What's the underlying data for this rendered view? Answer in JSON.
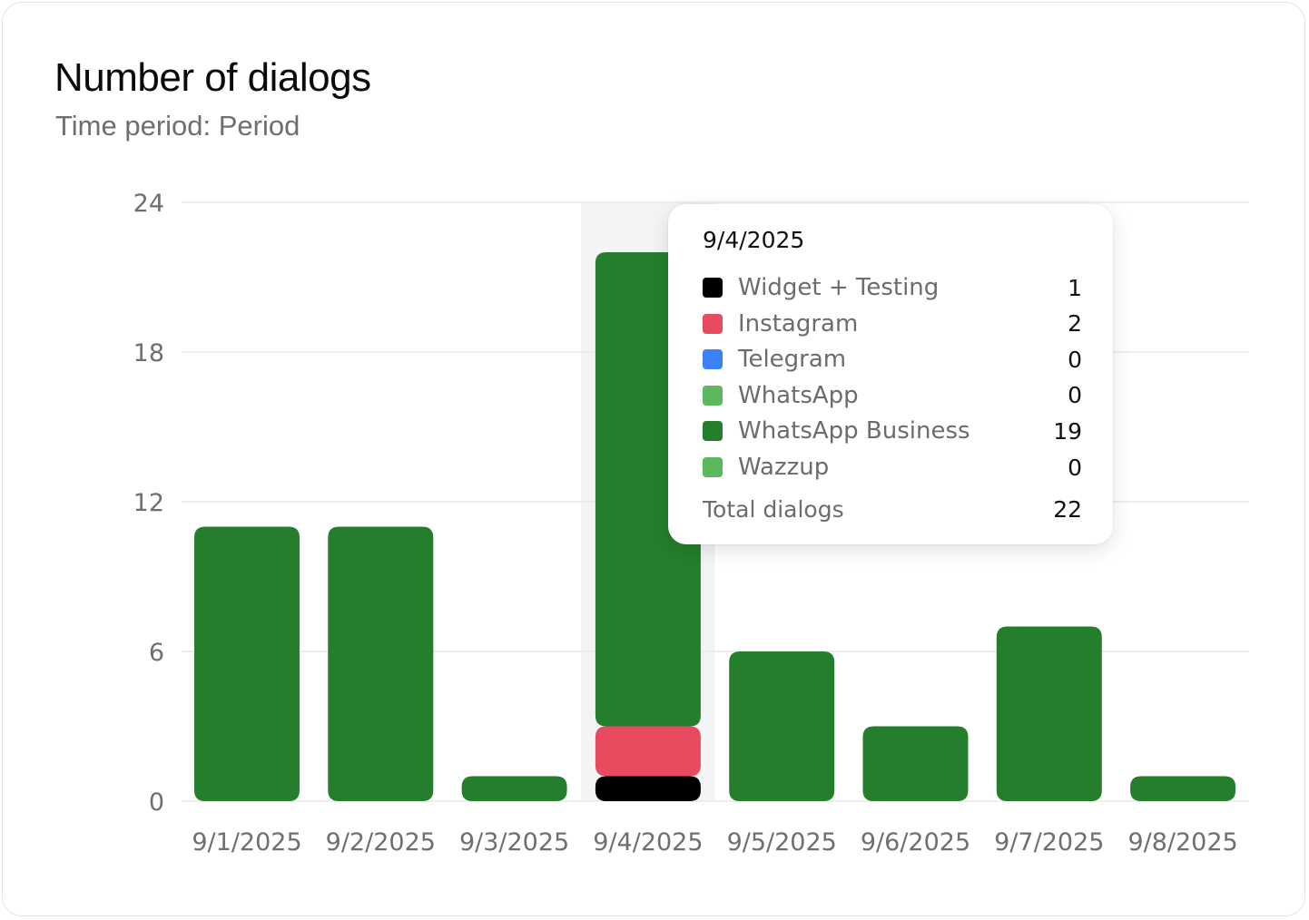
{
  "header": {
    "title": "Number of dialogs",
    "subtitle": "Time period: Period"
  },
  "colors": {
    "widget_testing": "#000000",
    "instagram": "#e84a5f",
    "telegram": "#3b82f6",
    "whatsapp": "#5cb85c",
    "whatsapp_business": "#247e2c",
    "wazzup": "#5cb85c",
    "highlight": "#f3f4f5",
    "grid": "#e9e9e9",
    "tick_text": "#6f6f6f"
  },
  "chart_data": {
    "type": "bar",
    "stacked": true,
    "categories": [
      "9/1/2025",
      "9/2/2025",
      "9/3/2025",
      "9/4/2025",
      "9/5/2025",
      "9/6/2025",
      "9/7/2025",
      "9/8/2025"
    ],
    "series": [
      {
        "name": "Widget + Testing",
        "color_key": "widget_testing",
        "values": [
          0,
          0,
          0,
          1,
          0,
          0,
          0,
          0
        ]
      },
      {
        "name": "Instagram",
        "color_key": "instagram",
        "values": [
          0,
          0,
          0,
          2,
          0,
          0,
          0,
          0
        ]
      },
      {
        "name": "Telegram",
        "color_key": "telegram",
        "values": [
          0,
          0,
          0,
          0,
          0,
          0,
          0,
          0
        ]
      },
      {
        "name": "WhatsApp",
        "color_key": "whatsapp",
        "values": [
          0,
          0,
          0,
          0,
          0,
          0,
          0,
          0
        ]
      },
      {
        "name": "WhatsApp Business",
        "color_key": "whatsapp_business",
        "values": [
          11,
          11,
          1,
          19,
          6,
          3,
          7,
          1
        ]
      },
      {
        "name": "Wazzup",
        "color_key": "wazzup",
        "values": [
          0,
          0,
          0,
          0,
          0,
          0,
          0,
          0
        ]
      }
    ],
    "yticks": [
      0,
      6,
      12,
      18,
      24
    ],
    "ylim": [
      0,
      24
    ],
    "grid": true,
    "highlighted_category": "9/4/2025"
  },
  "tooltip": {
    "date": "9/4/2025",
    "rows": [
      {
        "label": "Widget + Testing",
        "value": "1",
        "color_key": "widget_testing"
      },
      {
        "label": "Instagram",
        "value": "2",
        "color_key": "instagram"
      },
      {
        "label": "Telegram",
        "value": "0",
        "color_key": "telegram"
      },
      {
        "label": "WhatsApp",
        "value": "0",
        "color_key": "whatsapp"
      },
      {
        "label": "WhatsApp Business",
        "value": "19",
        "color_key": "whatsapp_business"
      },
      {
        "label": "Wazzup",
        "value": "0",
        "color_key": "wazzup"
      }
    ],
    "total_label": "Total dialogs",
    "total_value": "22"
  }
}
